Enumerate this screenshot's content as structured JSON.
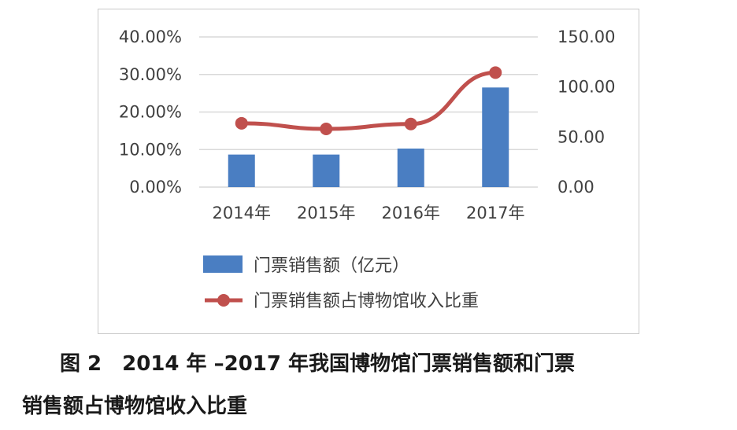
{
  "chart_data": {
    "type": "bar+line",
    "categories": [
      "2014年",
      "2015年",
      "2016年",
      "2017年"
    ],
    "series": [
      {
        "name": "门票销售额（亿元）",
        "type": "bar",
        "axis": "right",
        "values": [
          32.5,
          32.5,
          38.5,
          99.5
        ],
        "color": "#4a7ec2"
      },
      {
        "name": "门票销售额占博物馆收入比重",
        "type": "line",
        "axis": "left",
        "values": [
          0.17,
          0.155,
          0.168,
          0.305
        ],
        "color": "#c0504d"
      }
    ],
    "left_axis": {
      "min": 0,
      "max": 0.4,
      "ticks": [
        "0.00%",
        "10.00%",
        "20.00%",
        "30.00%",
        "40.00%"
      ]
    },
    "right_axis": {
      "min": 0,
      "max": 150,
      "ticks": [
        "0.00",
        "50.00",
        "100.00",
        "150.00"
      ]
    },
    "grid": true,
    "legend_position": "bottom"
  },
  "caption": {
    "line1": "图 2　2014 年 –2017 年我国博物馆门票销售额和门票",
    "line2": "销售额占博物馆收入比重"
  }
}
